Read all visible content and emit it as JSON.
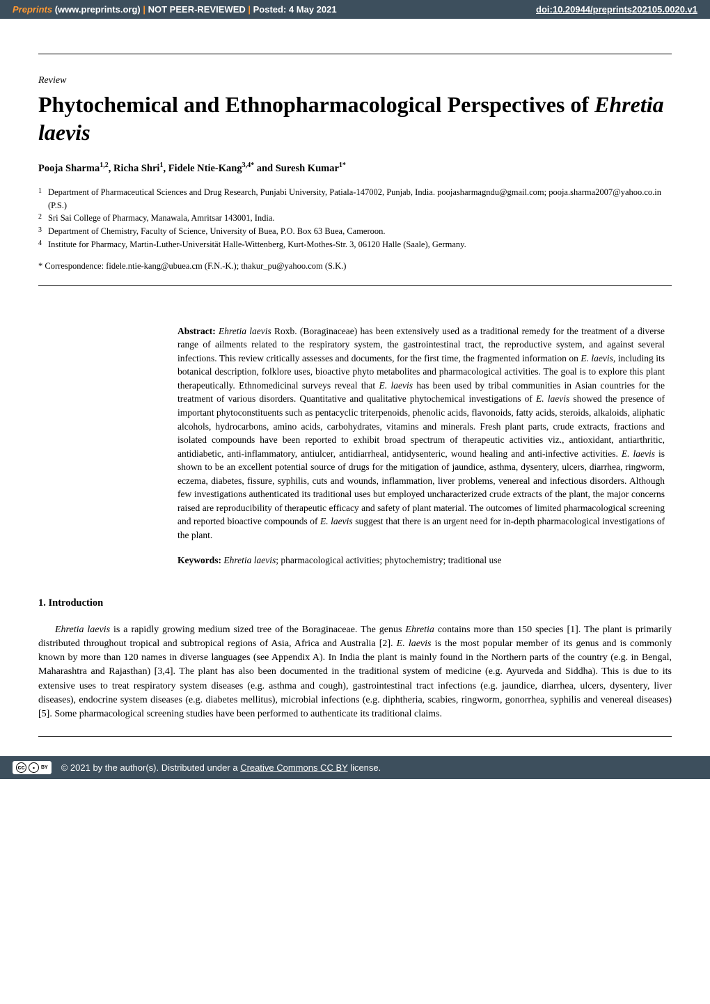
{
  "header": {
    "site_label": "Preprints",
    "site_url": "(www.preprints.org)",
    "sep": "|",
    "peer_review": "NOT PEER-REVIEWED",
    "posted": "Posted: 4 May 2021",
    "doi": "doi:10.20944/preprints202105.0020.v1"
  },
  "article_type": "Review",
  "title_part1": "Phytochemical and Ethnopharmacological Perspectives of ",
  "title_part2_italic": "Ehretia laevis",
  "authors_line": "Pooja Sharma",
  "authors_sup1": "1,2",
  "authors_mid1": ", Richa Shri",
  "authors_sup2": "1",
  "authors_mid2": ", Fidele Ntie-Kang",
  "authors_sup3": "3,4*",
  "authors_mid3": " and Suresh Kumar",
  "authors_sup4": "1*",
  "affiliations": [
    {
      "num": "1",
      "text": "Department of Pharmaceutical Sciences and Drug Research, Punjabi University, Patiala-147002, Punjab, India. poojasharmagndu@gmail.com; pooja.sharma2007@yahoo.co.in (P.S.)"
    },
    {
      "num": "2",
      "text": "Sri Sai College of Pharmacy, Manawala, Amritsar 143001, India."
    },
    {
      "num": "3",
      "text": "Department of Chemistry, Faculty of Science, University of Buea, P.O. Box 63 Buea, Cameroon."
    },
    {
      "num": "4",
      "text": "Institute for Pharmacy, Martin-Luther-Universität Halle-Wittenberg, Kurt-Mothes-Str. 3, 06120 Halle (Saale), Germany."
    }
  ],
  "correspondence": "* Correspondence: fidele.ntie-kang@ubuea.cm (F.N.-K.); thakur_pu@yahoo.com (S.K.)",
  "abstract_label": "Abstract: ",
  "abstract_species": "Ehretia laevis",
  "abstract_text1": " Roxb. (Boraginaceae) has been extensively used as a traditional remedy for the treatment of a diverse range of ailments related to the respiratory system, the gastrointestinal tract, the reproductive system, and against several infections. This review critically assesses and documents, for the first time, the fragmented information on ",
  "abstract_species2": "E. laevis",
  "abstract_text2": ", including its botanical description, folklore uses, bioactive phyto metabolites and pharmacological activities. The goal is to explore this plant therapeutically. Ethnomedicinal surveys reveal that ",
  "abstract_species3": "E. laevis",
  "abstract_text3": " has been used by tribal communities in Asian countries for the treatment of various disorders. Quantitative and qualitative phytochemical investigations of ",
  "abstract_species4": "E. laevis",
  "abstract_text4": " showed the presence of important phytoconstituents such as pentacyclic triterpenoids, phenolic acids, flavonoids, fatty acids, steroids, alkaloids, aliphatic alcohols, hydrocarbons, amino acids, carbohydrates, vitamins and minerals. Fresh plant parts, crude extracts, fractions and isolated compounds have been reported to exhibit broad spectrum of therapeutic activities viz., antioxidant, antiarthritic, antidiabetic, anti-inflammatory, antiulcer, antidiarrheal, antidysenteric, wound healing and anti-infective activities. ",
  "abstract_species5": "E. laevis",
  "abstract_text5": "  is shown to be an excellent potential source of drugs for the mitigation of jaundice, asthma, dysentery, ulcers, diarrhea, ringworm, eczema, diabetes, fissure, syphilis, cuts and wounds, inflammation, liver problems, venereal and infectious disorders. Although few investigations authenticated its traditional uses but employed uncharacterized crude extracts of the plant, the major concerns raised are reproducibility of therapeutic efficacy and safety of plant material. The outcomes of limited pharmacological screening and reported bioactive compounds of ",
  "abstract_species6": "E. laevis",
  "abstract_text6": " suggest that there is an urgent need for in-depth pharmacological investigations of the plant.",
  "keywords_label": "Keywords: ",
  "keywords_species": "Ehretia laevis",
  "keywords_text": "; pharmacological activities; phytochemistry; traditional use",
  "section1_heading": "1. Introduction",
  "intro_sp1": "Ehretia laevis",
  "intro_t1": " is a rapidly growing medium sized tree of the Boraginaceae. The genus ",
  "intro_sp2": "Ehretia",
  "intro_t2": " contains more than 150 species [1]. The plant is primarily distributed throughout tropical and subtropical regions of Asia, Africa and Australia [2]. ",
  "intro_sp3": "E. laevis",
  "intro_t3": " is the most popular member of its genus and is commonly known by more than 120 names in diverse languages (see Appendix A). In India the plant is mainly found in the Northern parts of the country (e.g. in Bengal, Maharashtra and Rajasthan) [3,4]. The plant has also been documented in the traditional system of medicine (e.g. Ayurveda and Siddha). This is due to its extensive uses to treat respiratory system diseases (e.g. asthma and cough), gastrointestinal tract infections (e.g. jaundice, diarrhea, ulcers, dysentery, liver diseases), endocrine system diseases (e.g. diabetes mellitus), microbial infections (e.g. diphtheria, scabies, ringworm, gonorrhea, syphilis and venereal diseases) [5].  Some pharmacological screening studies have been performed to authenticate its traditional claims.",
  "footer": {
    "copyright": "© 2021 by the author(s). Distributed under a ",
    "license_link": "Creative Commons CC BY",
    "license_suffix": " license."
  },
  "colors": {
    "header_bg": "#3d4f5d",
    "accent_orange": "#ff9933",
    "text": "#000000",
    "page_bg": "#ffffff"
  }
}
